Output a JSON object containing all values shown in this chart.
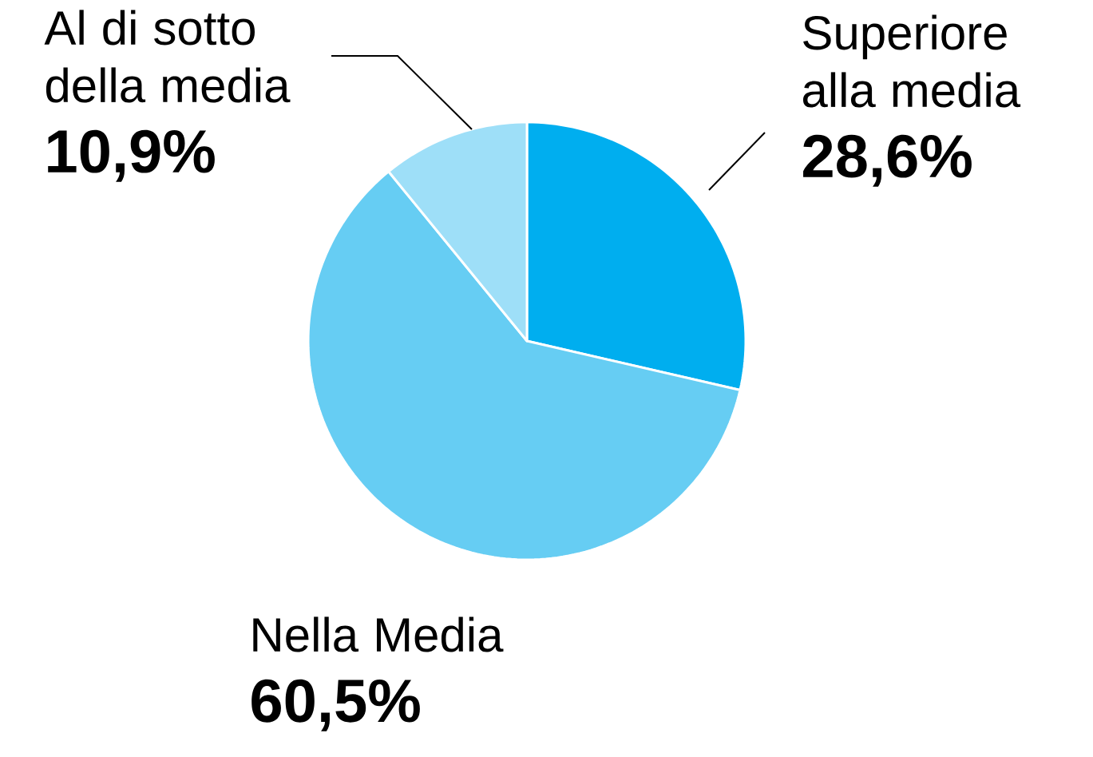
{
  "chart_data": {
    "type": "pie",
    "categories": [
      "Superiore alla media",
      "Nella Media",
      "Al di sotto della media"
    ],
    "values": [
      28.6,
      60.5,
      10.9
    ],
    "colors": [
      "#00aeef",
      "#66cdf3",
      "#9edff8"
    ],
    "value_labels": [
      "28,6%",
      "60,5%",
      "10,9%"
    ]
  }
}
